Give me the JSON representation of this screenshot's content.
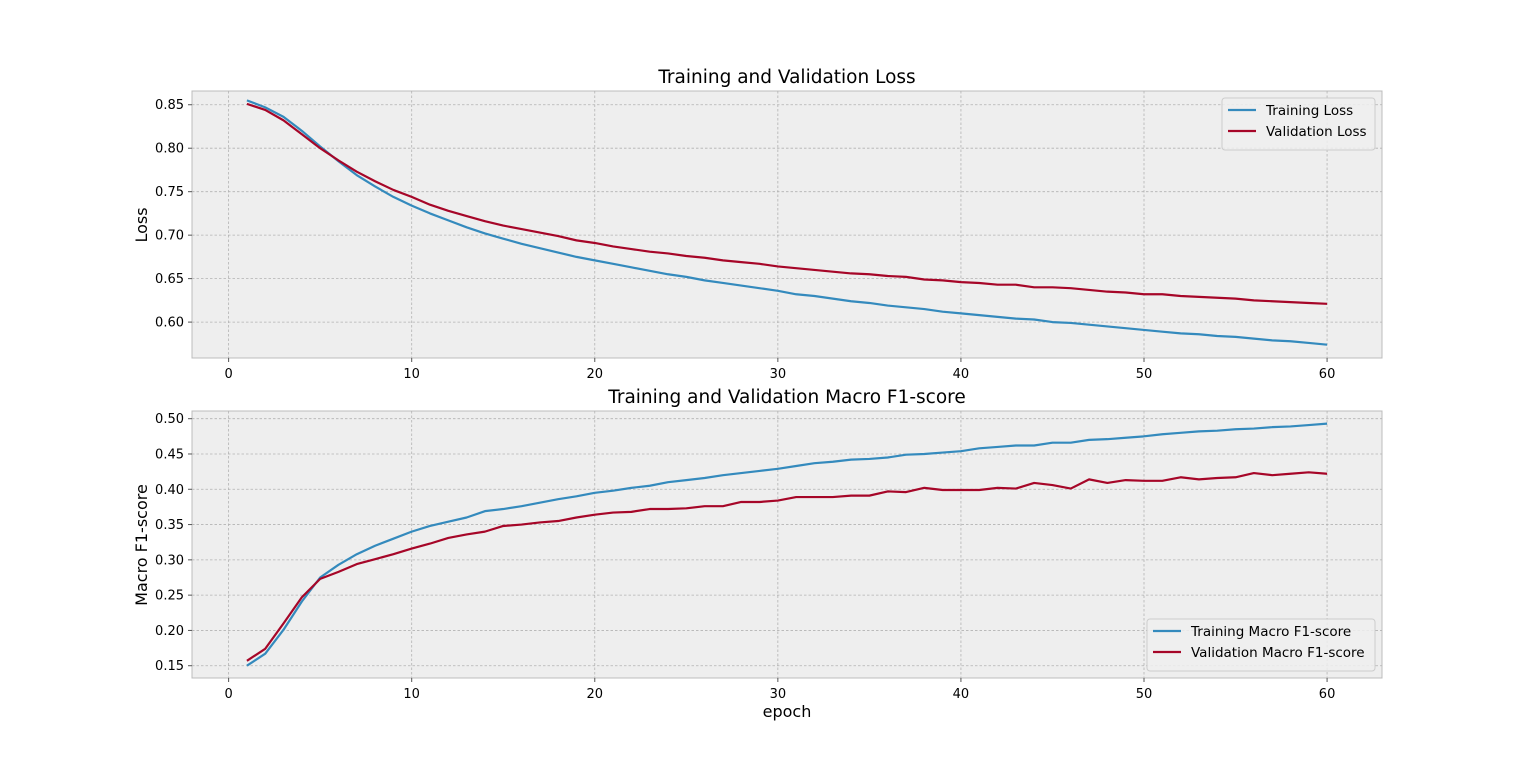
{
  "chart_data": [
    {
      "type": "line",
      "title": "Training and Validation Loss",
      "xlabel": "",
      "ylabel": "Loss",
      "xlim": [
        -2,
        63
      ],
      "ylim": [
        0.5587,
        0.8658
      ],
      "xticks": [
        0,
        10,
        20,
        30,
        40,
        50,
        60
      ],
      "yticks": [
        0.6,
        0.65,
        0.7,
        0.75,
        0.8,
        0.85
      ],
      "ytick_labels": [
        "0.60",
        "0.65",
        "0.70",
        "0.75",
        "0.80",
        "0.85"
      ],
      "grid": true,
      "legend_position": "top-right",
      "x": [
        1,
        2,
        3,
        4,
        5,
        6,
        7,
        8,
        9,
        10,
        11,
        12,
        13,
        14,
        15,
        16,
        17,
        18,
        19,
        20,
        21,
        22,
        23,
        24,
        25,
        26,
        27,
        28,
        29,
        30,
        31,
        32,
        33,
        34,
        35,
        36,
        37,
        38,
        39,
        40,
        41,
        42,
        43,
        44,
        45,
        46,
        47,
        48,
        49,
        50,
        51,
        52,
        53,
        54,
        55,
        56,
        57,
        58,
        59,
        60
      ],
      "series": [
        {
          "name": "Training Loss",
          "color": "#348abd",
          "values": [
            0.855,
            0.847,
            0.836,
            0.82,
            0.802,
            0.785,
            0.769,
            0.756,
            0.744,
            0.734,
            0.725,
            0.717,
            0.709,
            0.702,
            0.696,
            0.69,
            0.685,
            0.68,
            0.675,
            0.671,
            0.667,
            0.663,
            0.659,
            0.655,
            0.652,
            0.648,
            0.645,
            0.642,
            0.639,
            0.636,
            0.632,
            0.63,
            0.627,
            0.624,
            0.622,
            0.619,
            0.617,
            0.615,
            0.612,
            0.61,
            0.608,
            0.606,
            0.604,
            0.603,
            0.6,
            0.599,
            0.597,
            0.595,
            0.593,
            0.591,
            0.589,
            0.587,
            0.586,
            0.584,
            0.583,
            0.581,
            0.579,
            0.578,
            0.576,
            0.574
          ]
        },
        {
          "name": "Validation Loss",
          "color": "#a60628",
          "values": [
            0.851,
            0.844,
            0.832,
            0.816,
            0.8,
            0.786,
            0.773,
            0.762,
            0.752,
            0.744,
            0.735,
            0.728,
            0.722,
            0.716,
            0.711,
            0.707,
            0.703,
            0.699,
            0.694,
            0.691,
            0.687,
            0.684,
            0.681,
            0.679,
            0.676,
            0.674,
            0.671,
            0.669,
            0.667,
            0.664,
            0.662,
            0.66,
            0.658,
            0.656,
            0.655,
            0.653,
            0.652,
            0.649,
            0.648,
            0.646,
            0.645,
            0.643,
            0.643,
            0.64,
            0.64,
            0.639,
            0.637,
            0.635,
            0.634,
            0.632,
            0.632,
            0.63,
            0.629,
            0.628,
            0.627,
            0.625,
            0.624,
            0.623,
            0.622,
            0.621
          ]
        }
      ]
    },
    {
      "type": "line",
      "title": "Training and Validation Macro F1-score",
      "xlabel": "epoch",
      "ylabel": "Macro F1-score",
      "xlim": [
        -2,
        63
      ],
      "ylim": [
        0.1326,
        0.5109
      ],
      "xticks": [
        0,
        10,
        20,
        30,
        40,
        50,
        60
      ],
      "yticks": [
        0.15,
        0.2,
        0.25,
        0.3,
        0.35,
        0.4,
        0.45,
        0.5
      ],
      "ytick_labels": [
        "0.15",
        "0.20",
        "0.25",
        "0.30",
        "0.35",
        "0.40",
        "0.45",
        "0.50"
      ],
      "grid": true,
      "legend_position": "bottom-right",
      "x": [
        1,
        2,
        3,
        4,
        5,
        6,
        7,
        8,
        9,
        10,
        11,
        12,
        13,
        14,
        15,
        16,
        17,
        18,
        19,
        20,
        21,
        22,
        23,
        24,
        25,
        26,
        27,
        28,
        29,
        30,
        31,
        32,
        33,
        34,
        35,
        36,
        37,
        38,
        39,
        40,
        41,
        42,
        43,
        44,
        45,
        46,
        47,
        48,
        49,
        50,
        51,
        52,
        53,
        54,
        55,
        56,
        57,
        58,
        59,
        60
      ],
      "series": [
        {
          "name": "Training Macro F1-score",
          "color": "#348abd",
          "values": [
            0.15,
            0.167,
            0.201,
            0.241,
            0.275,
            0.293,
            0.308,
            0.32,
            0.33,
            0.34,
            0.348,
            0.354,
            0.36,
            0.369,
            0.372,
            0.376,
            0.381,
            0.386,
            0.39,
            0.395,
            0.398,
            0.402,
            0.405,
            0.41,
            0.413,
            0.416,
            0.42,
            0.423,
            0.426,
            0.429,
            0.433,
            0.437,
            0.439,
            0.442,
            0.443,
            0.445,
            0.449,
            0.45,
            0.452,
            0.454,
            0.458,
            0.46,
            0.462,
            0.462,
            0.466,
            0.466,
            0.47,
            0.471,
            0.473,
            0.475,
            0.478,
            0.48,
            0.482,
            0.483,
            0.485,
            0.486,
            0.488,
            0.489,
            0.491,
            0.493
          ]
        },
        {
          "name": "Validation Macro F1-score",
          "color": "#a60628",
          "values": [
            0.157,
            0.174,
            0.21,
            0.247,
            0.273,
            0.283,
            0.294,
            0.301,
            0.308,
            0.316,
            0.323,
            0.331,
            0.336,
            0.34,
            0.348,
            0.35,
            0.353,
            0.355,
            0.36,
            0.364,
            0.367,
            0.368,
            0.372,
            0.372,
            0.373,
            0.376,
            0.376,
            0.382,
            0.382,
            0.384,
            0.389,
            0.389,
            0.389,
            0.391,
            0.391,
            0.397,
            0.396,
            0.402,
            0.399,
            0.399,
            0.399,
            0.402,
            0.401,
            0.409,
            0.406,
            0.401,
            0.414,
            0.409,
            0.413,
            0.412,
            0.412,
            0.417,
            0.414,
            0.416,
            0.417,
            0.423,
            0.42,
            0.422,
            0.424,
            0.422
          ]
        }
      ]
    }
  ]
}
